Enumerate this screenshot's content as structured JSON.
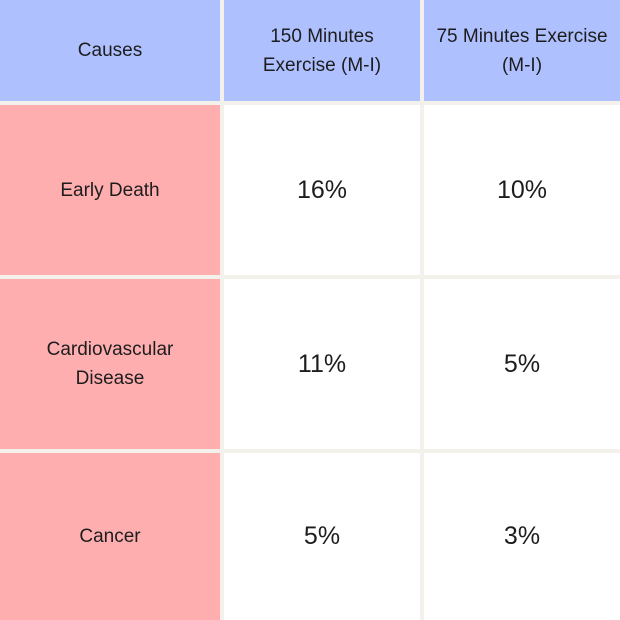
{
  "colors": {
    "header_bg": "#afc0ff",
    "cause_bg": "#ffaeb0",
    "value_bg": "#ffffff",
    "gridline": "#f4f1ec"
  },
  "table": {
    "headers": [
      "Causes",
      "150 Minutes Exercise (M-I)",
      "75 Minutes Exercise (M-I)"
    ],
    "rows": [
      {
        "cause": "Early Death",
        "values": [
          "16%",
          "10%"
        ]
      },
      {
        "cause": "Cardiovascular Disease",
        "values": [
          "11%",
          "5%"
        ]
      },
      {
        "cause": "Cancer",
        "values": [
          "5%",
          "3%"
        ]
      }
    ]
  }
}
